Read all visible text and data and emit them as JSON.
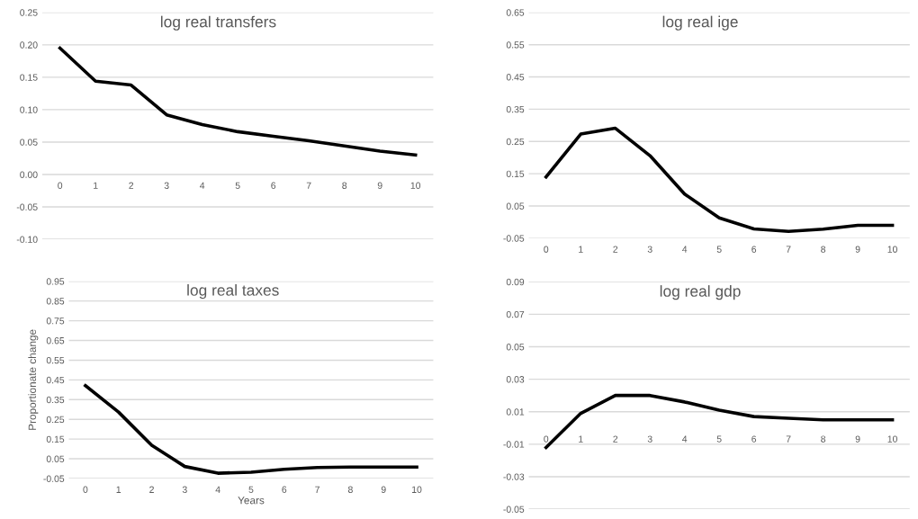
{
  "chart_data": [
    {
      "type": "line",
      "title": "log real transfers",
      "categories": [
        "0",
        "1",
        "2",
        "3",
        "4",
        "5",
        "6",
        "7",
        "8",
        "9",
        "10"
      ],
      "series": [
        {
          "color": "#000000",
          "values": [
            0.195,
            0.144,
            0.138,
            0.092,
            0.077,
            0.066,
            0.059,
            0.052,
            0.044,
            0.036,
            0.03
          ]
        }
      ],
      "ylim": [
        -0.1,
        0.25
      ],
      "yticks": [
        {
          "value": -0.1,
          "label": "-0.10"
        },
        {
          "value": -0.05,
          "label": "-0.05"
        },
        {
          "value": 0,
          "label": "0.00"
        },
        {
          "value": 0.05,
          "label": "0.05"
        },
        {
          "value": 0.1,
          "label": "0.10"
        },
        {
          "value": 0.15,
          "label": "0.15"
        },
        {
          "value": 0.2,
          "label": "0.20"
        },
        {
          "value": 0.25,
          "label": "0.25"
        }
      ],
      "grid": "y"
    },
    {
      "type": "line",
      "title": "log real ige",
      "categories": [
        "0",
        "1",
        "2",
        "3",
        "4",
        "5",
        "6",
        "7",
        "8",
        "9",
        "10"
      ],
      "series": [
        {
          "color": "#000000",
          "values": [
            0.14,
            0.273,
            0.291,
            0.206,
            0.087,
            0.013,
            -0.021,
            -0.029,
            -0.022,
            -0.01,
            -0.01
          ]
        }
      ],
      "ylim": [
        -0.05,
        0.65
      ],
      "yticks": [
        {
          "value": -0.05,
          "label": "-0.05"
        },
        {
          "value": 0.05,
          "label": "0.05"
        },
        {
          "value": 0.15,
          "label": "0.15"
        },
        {
          "value": 0.25,
          "label": "0.25"
        },
        {
          "value": 0.35,
          "label": "0.35"
        },
        {
          "value": 0.45,
          "label": "0.45"
        },
        {
          "value": 0.55,
          "label": "0.55"
        },
        {
          "value": 0.65,
          "label": "0.65"
        }
      ],
      "grid": "y"
    },
    {
      "type": "line",
      "title": "log real taxes",
      "xlabel": "Years",
      "ylabel": "Proportionate change",
      "categories": [
        "0",
        "1",
        "2",
        "3",
        "4",
        "5",
        "6",
        "7",
        "8",
        "9",
        "10"
      ],
      "series": [
        {
          "color": "#000000",
          "values": [
            0.421,
            0.287,
            0.119,
            0.011,
            -0.023,
            -0.018,
            -0.003,
            0.006,
            0.008,
            0.008,
            0.008
          ]
        }
      ],
      "ylim": [
        -0.05,
        0.95
      ],
      "yticks": [
        {
          "value": -0.05,
          "label": "-0.05"
        },
        {
          "value": 0.05,
          "label": "0.05"
        },
        {
          "value": 0.15,
          "label": "0.15"
        },
        {
          "value": 0.25,
          "label": "0.25"
        },
        {
          "value": 0.35,
          "label": "0.35"
        },
        {
          "value": 0.45,
          "label": "0.45"
        },
        {
          "value": 0.55,
          "label": "0.55"
        },
        {
          "value": 0.65,
          "label": "0.65"
        },
        {
          "value": 0.75,
          "label": "0.75"
        },
        {
          "value": 0.85,
          "label": "0.85"
        },
        {
          "value": 0.95,
          "label": "0.95"
        }
      ],
      "grid": "y"
    },
    {
      "type": "line",
      "title": "log real gdp",
      "categories": [
        "0",
        "1",
        "2",
        "3",
        "4",
        "5",
        "6",
        "7",
        "8",
        "9",
        "10"
      ],
      "series": [
        {
          "color": "#000000",
          "values": [
            -0.012,
            0.009,
            0.02,
            0.02,
            0.016,
            0.011,
            0.007,
            0.006,
            0.005,
            0.005,
            0.005
          ]
        }
      ],
      "ylim": [
        -0.05,
        0.09
      ],
      "yticks": [
        {
          "value": -0.05,
          "label": "-0.05"
        },
        {
          "value": -0.03,
          "label": "-0.03"
        },
        {
          "value": -0.01,
          "label": "-0.01"
        },
        {
          "value": 0.01,
          "label": "0.01"
        },
        {
          "value": 0.03,
          "label": "0.03"
        },
        {
          "value": 0.05,
          "label": "0.05"
        },
        {
          "value": 0.07,
          "label": "0.07"
        },
        {
          "value": 0.09,
          "label": "0.09"
        }
      ],
      "grid": "y"
    }
  ]
}
